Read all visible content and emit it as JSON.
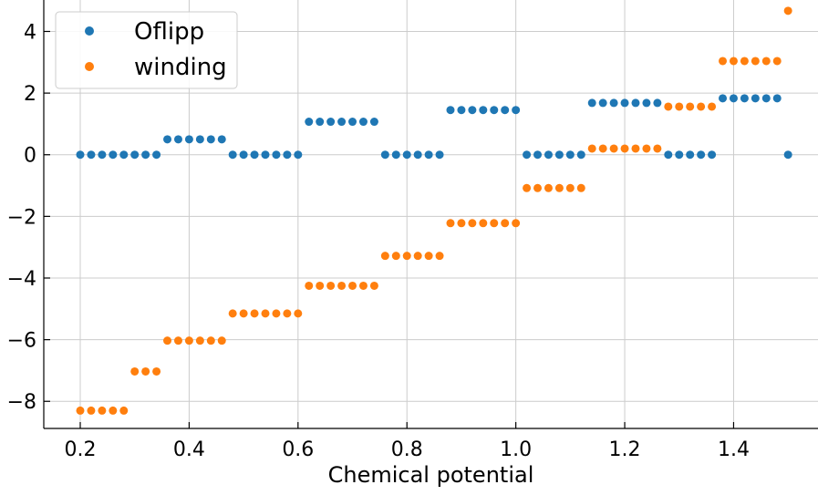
{
  "chart_data": {
    "type": "scatter",
    "title": "",
    "xlabel": "Chemical potential",
    "ylabel": "",
    "xlim": [
      0.133,
      1.555
    ],
    "ylim": [
      -8.88,
      5.02
    ],
    "xticks": [
      0.2,
      0.4,
      0.6,
      0.8,
      1.0,
      1.2,
      1.4
    ],
    "xtick_labels": [
      "0.2",
      "0.4",
      "0.6",
      "0.8",
      "1.0",
      "1.2",
      "1.4"
    ],
    "yticks": [
      -8,
      -6,
      -4,
      -2,
      0,
      2,
      4
    ],
    "ytick_labels": [
      "−8",
      "−6",
      "−4",
      "−2",
      "0",
      "2",
      "4"
    ],
    "grid": true,
    "legend_position": "top-left",
    "series": [
      {
        "name": "Oflipp",
        "color": "#1f77b4",
        "points": [
          [
            0.2,
            0
          ],
          [
            0.22,
            0
          ],
          [
            0.24,
            0
          ],
          [
            0.26,
            0
          ],
          [
            0.28,
            0
          ],
          [
            0.3,
            0
          ],
          [
            0.32,
            0
          ],
          [
            0.34,
            0
          ],
          [
            0.36,
            0.5
          ],
          [
            0.38,
            0.5
          ],
          [
            0.4,
            0.5
          ],
          [
            0.42,
            0.5
          ],
          [
            0.44,
            0.5
          ],
          [
            0.46,
            0.5
          ],
          [
            0.48,
            0
          ],
          [
            0.5,
            0
          ],
          [
            0.52,
            0
          ],
          [
            0.54,
            0
          ],
          [
            0.56,
            0
          ],
          [
            0.58,
            0
          ],
          [
            0.6,
            0
          ],
          [
            0.62,
            1.07
          ],
          [
            0.64,
            1.07
          ],
          [
            0.66,
            1.07
          ],
          [
            0.68,
            1.07
          ],
          [
            0.7,
            1.07
          ],
          [
            0.72,
            1.07
          ],
          [
            0.74,
            1.07
          ],
          [
            0.76,
            0
          ],
          [
            0.78,
            0
          ],
          [
            0.8,
            0
          ],
          [
            0.82,
            0
          ],
          [
            0.84,
            0
          ],
          [
            0.86,
            0
          ],
          [
            0.88,
            1.45
          ],
          [
            0.9,
            1.45
          ],
          [
            0.92,
            1.45
          ],
          [
            0.94,
            1.45
          ],
          [
            0.96,
            1.45
          ],
          [
            0.98,
            1.45
          ],
          [
            1.0,
            1.45
          ],
          [
            1.02,
            0
          ],
          [
            1.04,
            0
          ],
          [
            1.06,
            0
          ],
          [
            1.08,
            0
          ],
          [
            1.1,
            0
          ],
          [
            1.12,
            0
          ],
          [
            1.14,
            1.68
          ],
          [
            1.16,
            1.68
          ],
          [
            1.18,
            1.68
          ],
          [
            1.2,
            1.68
          ],
          [
            1.22,
            1.68
          ],
          [
            1.24,
            1.68
          ],
          [
            1.26,
            1.68
          ],
          [
            1.28,
            0
          ],
          [
            1.3,
            0
          ],
          [
            1.32,
            0
          ],
          [
            1.34,
            0
          ],
          [
            1.36,
            0
          ],
          [
            1.38,
            1.83
          ],
          [
            1.4,
            1.83
          ],
          [
            1.42,
            1.83
          ],
          [
            1.44,
            1.83
          ],
          [
            1.46,
            1.83
          ],
          [
            1.48,
            1.83
          ],
          [
            1.5,
            0
          ]
        ]
      },
      {
        "name": "winding",
        "color": "#ff7f0e",
        "points": [
          [
            0.2,
            -8.3
          ],
          [
            0.22,
            -8.3
          ],
          [
            0.24,
            -8.3
          ],
          [
            0.26,
            -8.3
          ],
          [
            0.28,
            -8.3
          ],
          [
            0.3,
            -7.03
          ],
          [
            0.32,
            -7.03
          ],
          [
            0.34,
            -7.03
          ],
          [
            0.36,
            -6.03
          ],
          [
            0.38,
            -6.03
          ],
          [
            0.4,
            -6.03
          ],
          [
            0.42,
            -6.03
          ],
          [
            0.44,
            -6.03
          ],
          [
            0.46,
            -6.03
          ],
          [
            0.48,
            -5.15
          ],
          [
            0.5,
            -5.15
          ],
          [
            0.52,
            -5.15
          ],
          [
            0.54,
            -5.15
          ],
          [
            0.56,
            -5.15
          ],
          [
            0.58,
            -5.15
          ],
          [
            0.6,
            -5.15
          ],
          [
            0.62,
            -4.25
          ],
          [
            0.64,
            -4.25
          ],
          [
            0.66,
            -4.25
          ],
          [
            0.68,
            -4.25
          ],
          [
            0.7,
            -4.25
          ],
          [
            0.72,
            -4.25
          ],
          [
            0.74,
            -4.25
          ],
          [
            0.76,
            -3.28
          ],
          [
            0.78,
            -3.28
          ],
          [
            0.8,
            -3.28
          ],
          [
            0.82,
            -3.28
          ],
          [
            0.84,
            -3.28
          ],
          [
            0.86,
            -3.28
          ],
          [
            0.88,
            -2.22
          ],
          [
            0.9,
            -2.22
          ],
          [
            0.92,
            -2.22
          ],
          [
            0.94,
            -2.22
          ],
          [
            0.96,
            -2.22
          ],
          [
            0.98,
            -2.22
          ],
          [
            1.0,
            -2.22
          ],
          [
            1.02,
            -1.08
          ],
          [
            1.04,
            -1.08
          ],
          [
            1.06,
            -1.08
          ],
          [
            1.08,
            -1.08
          ],
          [
            1.1,
            -1.08
          ],
          [
            1.12,
            -1.08
          ],
          [
            1.14,
            0.2
          ],
          [
            1.16,
            0.2
          ],
          [
            1.18,
            0.2
          ],
          [
            1.2,
            0.2
          ],
          [
            1.22,
            0.2
          ],
          [
            1.24,
            0.2
          ],
          [
            1.26,
            0.2
          ],
          [
            1.28,
            1.56
          ],
          [
            1.3,
            1.56
          ],
          [
            1.32,
            1.56
          ],
          [
            1.34,
            1.56
          ],
          [
            1.36,
            1.56
          ],
          [
            1.38,
            3.04
          ],
          [
            1.4,
            3.04
          ],
          [
            1.42,
            3.04
          ],
          [
            1.44,
            3.04
          ],
          [
            1.46,
            3.04
          ],
          [
            1.48,
            3.04
          ],
          [
            1.5,
            4.67
          ]
        ]
      }
    ]
  }
}
